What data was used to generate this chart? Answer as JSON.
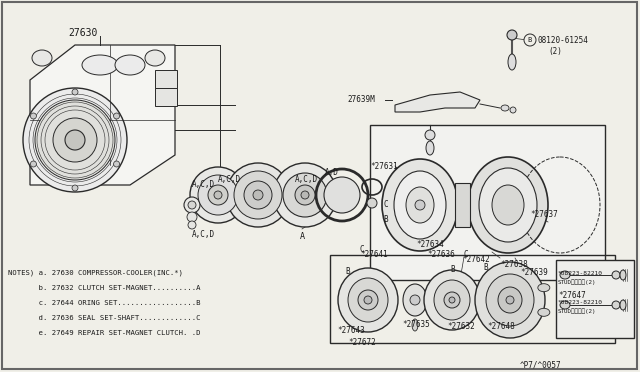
{
  "bg_color": "#f0efe8",
  "line_color": "#2a2a2a",
  "text_color": "#1a1a1a",
  "notes": [
    "NOTES) a. 27630 COMPRESSOR-COOLER(INC.*)",
    "       b. 27632 CLUTCH SET-MAGNET..........A",
    "       c. 27644 ORING SET..................B",
    "       d. 27636 SEAL SET-SHAFT.............C",
    "       e. 27649 REPAIR SET-MAGNET CLUTCH. .D"
  ],
  "fs_label": 5.5,
  "fs_notes": 5.2,
  "fs_small": 5.0
}
